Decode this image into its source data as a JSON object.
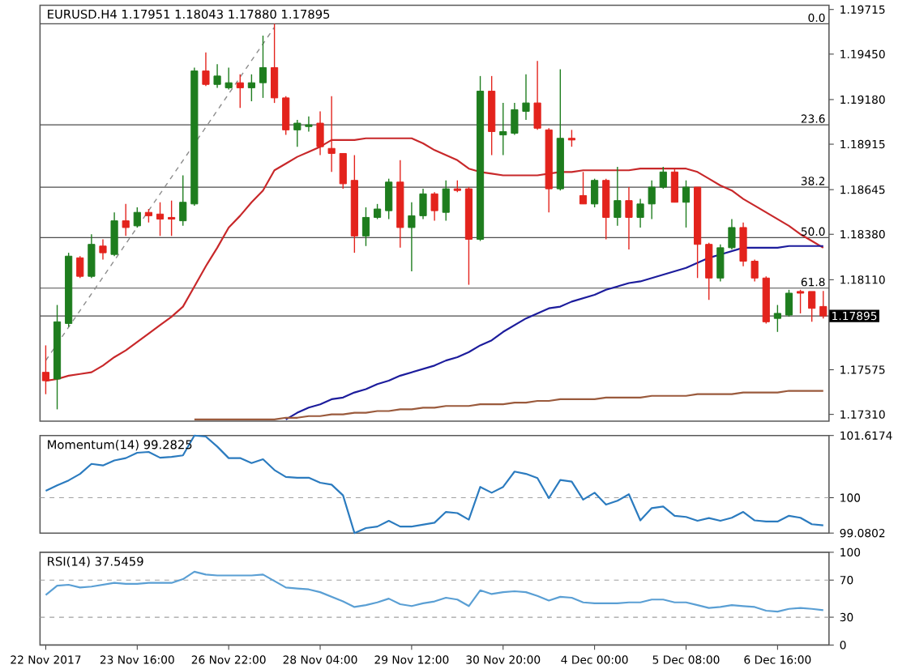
{
  "chart_data": [
    {
      "type": "candlestick",
      "title": "EURUSD.H4  1.17951 1.18043 1.17880 1.17895",
      "categories": [
        null,
        null,
        null,
        null,
        null,
        null,
        null,
        null,
        null,
        null,
        null,
        null,
        null,
        null,
        null,
        null,
        null,
        null,
        null,
        null,
        null,
        null,
        null,
        null,
        null,
        null,
        null,
        null,
        null,
        null,
        null,
        null,
        null,
        null,
        null,
        null,
        null,
        null,
        null,
        null,
        null,
        null,
        null,
        null,
        null,
        null,
        null,
        null,
        null,
        null,
        null,
        null,
        null,
        null,
        null,
        null,
        null,
        null,
        null,
        null,
        null,
        null,
        null,
        null,
        null,
        null,
        null,
        null,
        null
      ],
      "ohlc": [
        [
          1.1756,
          1.1772,
          1.1743,
          1.1751
        ],
        [
          1.1752,
          1.1796,
          1.1734,
          1.1786
        ],
        [
          1.1785,
          1.1827,
          1.1783,
          1.1825
        ],
        [
          1.1824,
          1.1825,
          1.1812,
          1.1813
        ],
        [
          1.1813,
          1.1838,
          1.1812,
          1.1832
        ],
        [
          1.1831,
          1.1835,
          1.1823,
          1.1827
        ],
        [
          1.1826,
          1.1851,
          1.1825,
          1.1846
        ],
        [
          1.1846,
          1.1856,
          1.1837,
          1.1842
        ],
        [
          1.1843,
          1.1854,
          1.1842,
          1.1851
        ],
        [
          1.1851,
          1.1853,
          1.1845,
          1.1849
        ],
        [
          1.185,
          1.1857,
          1.1837,
          1.1847
        ],
        [
          1.1848,
          1.1858,
          1.1837,
          1.1847
        ],
        [
          1.1846,
          1.1873,
          1.1843,
          1.1857
        ],
        [
          1.1856,
          1.1937,
          1.1855,
          1.1935
        ],
        [
          1.1935,
          1.1946,
          1.1926,
          1.1927
        ],
        [
          1.1927,
          1.1939,
          1.1925,
          1.1932
        ],
        [
          1.1925,
          1.1937,
          1.1924,
          1.1928
        ],
        [
          1.1928,
          1.1933,
          1.1913,
          1.1925
        ],
        [
          1.1925,
          1.1933,
          1.1917,
          1.1928
        ],
        [
          1.1928,
          1.1956,
          1.1919,
          1.1937
        ],
        [
          1.1937,
          1.1963,
          1.1916,
          1.1919
        ],
        [
          1.1919,
          1.192,
          1.1897,
          1.19
        ],
        [
          1.19,
          1.1906,
          1.189,
          1.1904
        ],
        [
          1.1902,
          1.1908,
          1.1899,
          1.1903
        ],
        [
          1.1904,
          1.1911,
          1.1885,
          1.189
        ],
        [
          1.1889,
          1.192,
          1.1875,
          1.1886
        ],
        [
          1.1886,
          1.1886,
          1.1865,
          1.1868
        ],
        [
          1.187,
          1.1885,
          1.1827,
          1.1837
        ],
        [
          1.1837,
          1.1854,
          1.1831,
          1.1848
        ],
        [
          1.1848,
          1.1856,
          1.1847,
          1.1853
        ],
        [
          1.1852,
          1.1871,
          1.1847,
          1.1869
        ],
        [
          1.1869,
          1.1882,
          1.183,
          1.1842
        ],
        [
          1.1842,
          1.1857,
          1.1816,
          1.1849
        ],
        [
          1.1849,
          1.1865,
          1.1847,
          1.1862
        ],
        [
          1.1862,
          1.1863,
          1.1846,
          1.1852
        ],
        [
          1.1851,
          1.187,
          1.1846,
          1.1865
        ],
        [
          1.1865,
          1.187,
          1.1863,
          1.1864
        ],
        [
          1.1865,
          1.1866,
          1.1808,
          1.1835
        ],
        [
          1.1835,
          1.1932,
          1.1834,
          1.1923
        ],
        [
          1.1923,
          1.1932,
          1.1885,
          1.1899
        ],
        [
          1.1897,
          1.1916,
          1.1885,
          1.1899
        ],
        [
          1.1898,
          1.1916,
          1.1897,
          1.1912
        ],
        [
          1.1911,
          1.1933,
          1.1906,
          1.1916
        ],
        [
          1.1916,
          1.1941,
          1.19,
          1.1901
        ],
        [
          1.19,
          1.1901,
          1.1851,
          1.1865
        ],
        [
          1.1865,
          1.1936,
          1.1864,
          1.1895
        ],
        [
          1.1895,
          1.19,
          1.189,
          1.1894
        ],
        [
          1.1861,
          1.1875,
          1.1856,
          1.1856
        ],
        [
          1.1856,
          1.1871,
          1.1854,
          1.187
        ],
        [
          1.187,
          1.1871,
          1.1835,
          1.1848
        ],
        [
          1.1848,
          1.1878,
          1.1843,
          1.1858
        ],
        [
          1.1858,
          1.1866,
          1.1829,
          1.1848
        ],
        [
          1.1848,
          1.1859,
          1.1842,
          1.1856
        ],
        [
          1.1856,
          1.187,
          1.1847,
          1.1866
        ],
        [
          1.1866,
          1.1878,
          1.1865,
          1.1875
        ],
        [
          1.1875,
          1.1877,
          1.1857,
          1.1857
        ],
        [
          1.1857,
          1.187,
          1.1842,
          1.1866
        ],
        [
          1.1866,
          1.1866,
          1.1812,
          1.1832
        ],
        [
          1.1832,
          1.1833,
          1.1799,
          1.1812
        ],
        [
          1.1812,
          1.1832,
          1.181,
          1.183
        ],
        [
          1.183,
          1.1847,
          1.1829,
          1.1842
        ],
        [
          1.1842,
          1.1845,
          1.1819,
          1.1822
        ],
        [
          1.1822,
          1.1823,
          1.181,
          1.1812
        ],
        [
          1.1812,
          1.1813,
          1.1785,
          1.1786
        ],
        [
          1.1788,
          1.1796,
          1.178,
          1.1791
        ],
        [
          1.179,
          1.1805,
          1.1789,
          1.1803
        ],
        [
          1.1804,
          1.1805,
          1.1791,
          1.1803
        ],
        [
          1.1804,
          1.1804,
          1.1786,
          1.1794
        ],
        [
          1.17951,
          1.18043,
          1.1788,
          1.17895
        ]
      ],
      "colors": [
        "#e3231c",
        "#1e7d1e",
        "#1e7d1e",
        "#e3231c",
        "#1e7d1e",
        "#e3231c",
        "#1e7d1e",
        "#e3231c",
        "#1e7d1e",
        "#e3231c",
        "#e3231c",
        "#e3231c",
        "#1e7d1e",
        "#1e7d1e",
        "#e3231c",
        "#1e7d1e",
        "#1e7d1e",
        "#e3231c",
        "#1e7d1e",
        "#1e7d1e",
        "#e3231c",
        "#e3231c",
        "#1e7d1e",
        "#1e7d1e",
        "#e3231c",
        "#e3231c",
        "#e3231c",
        "#e3231c",
        "#1e7d1e",
        "#1e7d1e",
        "#1e7d1e",
        "#e3231c",
        "#1e7d1e",
        "#1e7d1e",
        "#e3231c",
        "#1e7d1e",
        "#e3231c",
        "#e3231c",
        "#1e7d1e",
        "#e3231c",
        "#1e7d1e",
        "#1e7d1e",
        "#1e7d1e",
        "#e3231c",
        "#e3231c",
        "#1e7d1e",
        "#e3231c",
        "#e3231c",
        "#1e7d1e",
        "#e3231c",
        "#1e7d1e",
        "#e3231c",
        "#1e7d1e",
        "#1e7d1e",
        "#1e7d1e",
        "#e3231c",
        "#1e7d1e",
        "#e3231c",
        "#e3231c",
        "#1e7d1e",
        "#1e7d1e",
        "#e3231c",
        "#e3231c",
        "#e3231c",
        "#1e7d1e",
        "#1e7d1e",
        "#e3231c",
        "#e3231c",
        "#e3231c"
      ],
      "series": [
        {
          "type": "line",
          "color": "#c8282a",
          "values": [
            1.1751,
            1.1752,
            1.1754,
            1.1755,
            1.1756,
            1.176,
            1.1765,
            1.1769,
            1.1774,
            1.1779,
            1.1784,
            1.1789,
            1.1795,
            1.1807,
            1.1819,
            1.183,
            1.1842,
            1.1849,
            1.1857,
            1.1864,
            1.1876,
            1.188,
            1.1884,
            1.1887,
            1.189,
            1.1894,
            1.1894,
            1.1894,
            1.1895,
            1.1895,
            1.1895,
            1.1895,
            1.1895,
            1.1892,
            1.1888,
            1.1885,
            1.1882,
            1.1877,
            1.1875,
            1.1874,
            1.1873,
            1.1873,
            1.1873,
            1.1873,
            1.1874,
            1.1875,
            1.1875,
            1.1876,
            1.1876,
            1.1876,
            1.1876,
            1.1876,
            1.1877,
            1.1877,
            1.1877,
            1.1877,
            1.1877,
            1.1875,
            1.1871,
            1.1867,
            1.1864,
            1.1859,
            1.1855,
            1.1851,
            1.1847,
            1.1843,
            1.1838,
            1.1834,
            1.183
          ]
        },
        {
          "type": "line",
          "color": "#1c1c9c",
          "values": [
            null,
            null,
            null,
            null,
            null,
            null,
            null,
            null,
            null,
            null,
            null,
            null,
            null,
            null,
            null,
            null,
            null,
            null,
            null,
            null,
            null,
            1.1728,
            1.1732,
            1.1735,
            1.1737,
            1.174,
            1.1741,
            1.1744,
            1.1746,
            1.1749,
            1.1751,
            1.1754,
            1.1756,
            1.1758,
            1.176,
            1.1763,
            1.1765,
            1.1768,
            1.1772,
            1.1775,
            1.178,
            1.1784,
            1.1788,
            1.1791,
            1.1794,
            1.1795,
            1.1798,
            1.18,
            1.1802,
            1.1805,
            1.1807,
            1.1809,
            1.181,
            1.1812,
            1.1814,
            1.1816,
            1.1818,
            1.1821,
            1.1824,
            1.1826,
            1.1828,
            1.183,
            1.183,
            1.183,
            1.183,
            1.1831,
            1.1831,
            1.1831,
            1.1831
          ]
        },
        {
          "type": "line",
          "color": "#9a5a3c",
          "values": [
            null,
            null,
            null,
            null,
            null,
            null,
            null,
            null,
            null,
            null,
            null,
            null,
            null,
            1.1728,
            1.1728,
            1.1728,
            1.1728,
            1.1728,
            1.1728,
            1.1728,
            1.1728,
            1.1729,
            1.1729,
            1.173,
            1.173,
            1.1731,
            1.1731,
            1.1732,
            1.1732,
            1.1733,
            1.1733,
            1.1734,
            1.1734,
            1.1735,
            1.1735,
            1.1736,
            1.1736,
            1.1736,
            1.1737,
            1.1737,
            1.1737,
            1.1738,
            1.1738,
            1.1739,
            1.1739,
            1.174,
            1.174,
            1.174,
            1.174,
            1.1741,
            1.1741,
            1.1741,
            1.1741,
            1.1742,
            1.1742,
            1.1742,
            1.1742,
            1.1743,
            1.1743,
            1.1743,
            1.1743,
            1.1744,
            1.1744,
            1.1744,
            1.1744,
            1.1745,
            1.1745,
            1.1745,
            1.1745
          ]
        },
        {
          "type": "line",
          "color": "#8c8c8c",
          "line_style": "dashed",
          "values": [
            1.1763,
            null,
            null,
            null,
            null,
            null,
            null,
            null,
            null,
            null,
            null,
            null,
            null,
            null,
            null,
            null,
            null,
            null,
            null,
            null,
            1.1961,
            null,
            null,
            null,
            null,
            null,
            null,
            null,
            null,
            null,
            null,
            null,
            null,
            null,
            null,
            null,
            null,
            null,
            null,
            null,
            null,
            null,
            null,
            null,
            null,
            null,
            null,
            null,
            null,
            null,
            null,
            null,
            null,
            null,
            null,
            null,
            null,
            null,
            null,
            null,
            null,
            null,
            null,
            null,
            null,
            null,
            null,
            null,
            null
          ]
        }
      ],
      "ylim": [
        1.1727,
        1.1974
      ],
      "yticks": [
        {
          "value": 1.19715,
          "label": "1.19715"
        },
        {
          "value": 1.1945,
          "label": "1.19450"
        },
        {
          "value": 1.1918,
          "label": "1.19180"
        },
        {
          "value": 1.18915,
          "label": "1.18915"
        },
        {
          "value": 1.18645,
          "label": "1.18645"
        },
        {
          "value": 1.1838,
          "label": "1.18380"
        },
        {
          "value": 1.1811,
          "label": "1.18110"
        },
        {
          "value": 1.17575,
          "label": "1.17575"
        },
        {
          "value": 1.1731,
          "label": "1.17310"
        }
      ],
      "ref_lines": [
        {
          "axis": "y",
          "value": 1.1963,
          "color": "#4d4d4d"
        },
        {
          "axis": "y",
          "value": 1.1903,
          "color": "#4d4d4d"
        },
        {
          "axis": "y",
          "value": 1.1866,
          "color": "#4d4d4d"
        },
        {
          "axis": "y",
          "value": 1.1836,
          "color": "#4d4d4d"
        },
        {
          "axis": "y",
          "value": 1.1806,
          "color": "#4d4d4d"
        },
        {
          "axis": "y",
          "value": 1.17895,
          "label": "1.17895",
          "color": "#4d4d4d"
        }
      ],
      "annotations": [
        {
          "text": "0.0",
          "y": 1.1963
        },
        {
          "text": "23.6",
          "y": 1.1903
        },
        {
          "text": "38.2",
          "y": 1.1866
        },
        {
          "text": "50.0",
          "y": 1.1836
        },
        {
          "text": "61.8",
          "y": 1.1806
        }
      ],
      "tick_labels": "y"
    },
    {
      "type": "line",
      "title": "Momentum(14) 99.2825",
      "categories": [
        null,
        null,
        null,
        null,
        null,
        null,
        null,
        null,
        null,
        null,
        null,
        null,
        null,
        null,
        null,
        null,
        null,
        null,
        null,
        null,
        null,
        null,
        null,
        null,
        null,
        null,
        null,
        null,
        null,
        null,
        null,
        null,
        null,
        null,
        null,
        null,
        null,
        null,
        null,
        null,
        null,
        null,
        null,
        null,
        null,
        null,
        null,
        null,
        null,
        null,
        null,
        null,
        null,
        null,
        null,
        null,
        null,
        null,
        null,
        null,
        null,
        null,
        null,
        null,
        null,
        null,
        null,
        null,
        null
      ],
      "series": [
        {
          "color": "#2b7bbf",
          "values": [
            100.18,
            100.32,
            100.45,
            100.62,
            100.88,
            100.84,
            100.97,
            101.03,
            101.17,
            101.19,
            101.04,
            101.06,
            101.1,
            101.6174,
            101.59,
            101.33,
            101.03,
            101.03,
            100.9,
            101.0,
            100.72,
            100.54,
            100.52,
            100.52,
            100.39,
            100.34,
            100.06,
            99.0802,
            99.21,
            99.25,
            99.4,
            99.25,
            99.25,
            99.3,
            99.35,
            99.63,
            99.6,
            99.43,
            100.28,
            100.13,
            100.28,
            100.68,
            100.62,
            100.51,
            99.99,
            100.46,
            100.42,
            99.95,
            100.13,
            99.82,
            99.92,
            100.09,
            99.41,
            99.73,
            99.77,
            99.53,
            99.5,
            99.4,
            99.47,
            99.4,
            99.48,
            99.63,
            99.41,
            99.38,
            99.38,
            99.53,
            99.48,
            99.31,
            99.2825
          ]
        }
      ],
      "ylim": [
        99.0802,
        101.6174
      ],
      "yticks": [
        99.0802,
        100,
        101.6174
      ],
      "ref_lines": [
        {
          "axis": "y",
          "value": 100,
          "color": "#a0a0a0",
          "line_style": "dashed"
        }
      ],
      "tick_labels": "y"
    },
    {
      "type": "line",
      "title": "RSI(14) 37.5459",
      "categories": [
        "22 Nov 2017",
        null,
        null,
        null,
        null,
        null,
        null,
        null,
        "23 Nov 16:00",
        null,
        null,
        null,
        null,
        null,
        null,
        null,
        "26 Nov 22:00",
        null,
        null,
        null,
        null,
        null,
        null,
        null,
        "28 Nov 04:00",
        null,
        null,
        null,
        null,
        null,
        null,
        null,
        "29 Nov 12:00",
        null,
        null,
        null,
        null,
        null,
        null,
        null,
        "30 Nov 20:00",
        null,
        null,
        null,
        null,
        null,
        null,
        null,
        "4 Dec 00:00",
        null,
        null,
        null,
        null,
        null,
        null,
        null,
        "5 Dec 08:00",
        null,
        null,
        null,
        null,
        null,
        null,
        null,
        "6 Dec 16:00",
        null,
        null,
        null,
        null
      ],
      "series": [
        {
          "color": "#5a9fd4",
          "values": [
            54,
            64,
            65,
            62,
            63,
            65,
            67,
            66,
            66,
            67,
            67,
            67,
            71,
            79,
            76,
            75,
            75,
            75,
            75,
            76,
            69,
            62,
            61,
            60,
            57,
            52,
            47,
            41,
            43,
            46,
            50,
            44,
            42,
            45,
            47,
            51,
            49,
            42,
            59,
            55,
            57,
            58,
            57,
            53,
            48,
            52,
            51,
            46,
            45,
            45,
            45,
            46,
            46,
            49,
            49,
            46,
            46,
            43,
            40,
            41,
            43,
            42,
            41,
            37,
            36,
            39,
            40,
            39,
            37.5459
          ]
        }
      ],
      "ylim": [
        0,
        100
      ],
      "yticks": [
        0,
        30,
        70,
        100
      ],
      "ref_lines": [
        {
          "axis": "y",
          "value": 70,
          "color": "#a0a0a0",
          "line_style": "dashed"
        },
        {
          "axis": "y",
          "value": 30,
          "color": "#a0a0a0",
          "line_style": "dashed"
        }
      ]
    }
  ]
}
